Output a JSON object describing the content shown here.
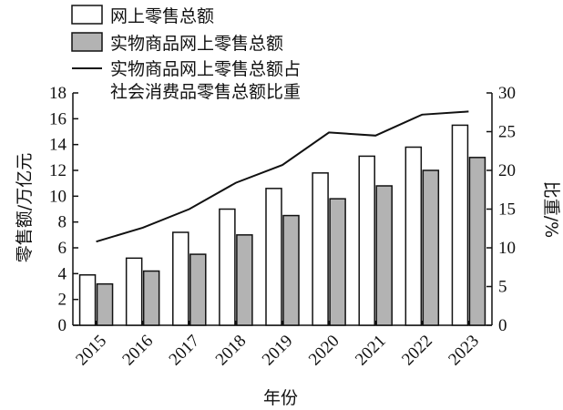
{
  "chart_data": {
    "type": "bar",
    "categories": [
      "2015",
      "2016",
      "2017",
      "2018",
      "2019",
      "2020",
      "2021",
      "2022",
      "2023"
    ],
    "series": [
      {
        "name": "网上零售总额",
        "kind": "bar",
        "axis": "left",
        "color": "#ffffff",
        "values": [
          3.9,
          5.2,
          7.2,
          9.0,
          10.6,
          11.8,
          13.1,
          13.8,
          15.5
        ]
      },
      {
        "name": "实物商品网上零售总额",
        "kind": "bar",
        "axis": "left",
        "color": "#b3b3b3",
        "values": [
          3.2,
          4.2,
          5.5,
          7.0,
          8.5,
          9.8,
          10.8,
          12.0,
          13.0
        ]
      }
    ],
    "line_series": {
      "name_line1": "实物商品网上零售总额占",
      "name_line2": "社会消费品零售总额比重",
      "kind": "line",
      "axis": "right",
      "color": "#111111",
      "values": [
        10.8,
        12.6,
        15.0,
        18.4,
        20.7,
        24.9,
        24.5,
        27.2,
        27.6
      ]
    },
    "xlabel": "年份",
    "ylabel": "零售额/万亿元",
    "ylabel_right": "比重/%",
    "ylim": [
      0,
      18
    ],
    "ylim_right": [
      0,
      30
    ],
    "yticks": [
      "0",
      "2",
      "4",
      "6",
      "8",
      "10",
      "12",
      "14",
      "16",
      "18"
    ],
    "yticks_right": [
      "0",
      "5",
      "10",
      "15",
      "20",
      "25",
      "30"
    ],
    "legend_position": "top-left",
    "grid": false
  }
}
